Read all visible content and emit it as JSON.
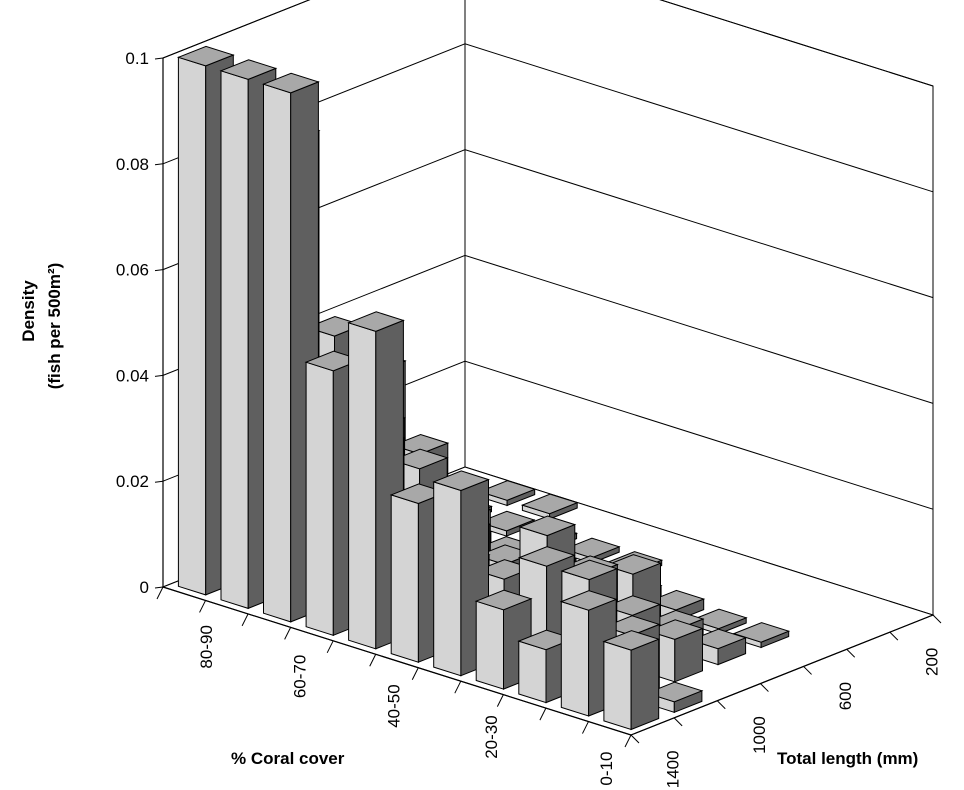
{
  "chart_data": {
    "type": "bar3d",
    "zlabel": [
      "Density",
      "(fish per 500m²)"
    ],
    "xlabel": "% Coral cover",
    "ylabel": "Total length (mm)",
    "zlim": [
      0,
      0.1
    ],
    "z_ticks": [
      "0",
      "0.02",
      "0.04",
      "0.06",
      "0.08",
      "0.1"
    ],
    "x_tick_labels": [
      "80-90",
      "60-70",
      "40-50",
      "20-30",
      "0-10"
    ],
    "y_tick_labels": [
      "200",
      "600",
      "1000",
      "1400"
    ],
    "grid": true,
    "bars": [
      {
        "length": 200,
        "values": [
          0.1,
          0.1,
          0.1,
          0.05,
          0.06,
          0.03,
          0.035,
          0.015,
          0.01,
          0.02,
          0.015
        ]
      },
      {
        "length": 400,
        "values": [
          0.035,
          0.085,
          0.02,
          0.032,
          0.02,
          0.015,
          0.015,
          0.02,
          0.02,
          0.012,
          0.002
        ]
      },
      {
        "length": 600,
        "values": [
          0.03,
          0.045,
          0.03,
          0.025,
          0.015,
          0.012,
          0.02,
          0.015,
          0.01,
          0.008,
          0.0
        ]
      },
      {
        "length": 800,
        "values": [
          0.005,
          0.035,
          0.022,
          0.012,
          0.006,
          0.003,
          0.008,
          0.012,
          0.004,
          0.003,
          0.0
        ]
      },
      {
        "length": 1000,
        "values": [
          0.003,
          0.002,
          0.002,
          0.002,
          0.002,
          0.001,
          0.002,
          0.002,
          0.001,
          0.001,
          0.0
        ]
      },
      {
        "length": 1200,
        "values": [
          0.004,
          0.001,
          0.001,
          0.001,
          0.001,
          0.001,
          0.0,
          0.0,
          0.0,
          0.0,
          0.0
        ]
      },
      {
        "length": 1400,
        "values": [
          0.0,
          0.001,
          0.001,
          0.0,
          0.0,
          0.0,
          0.0,
          0.0,
          0.0,
          0.0,
          0.0
        ]
      }
    ]
  }
}
